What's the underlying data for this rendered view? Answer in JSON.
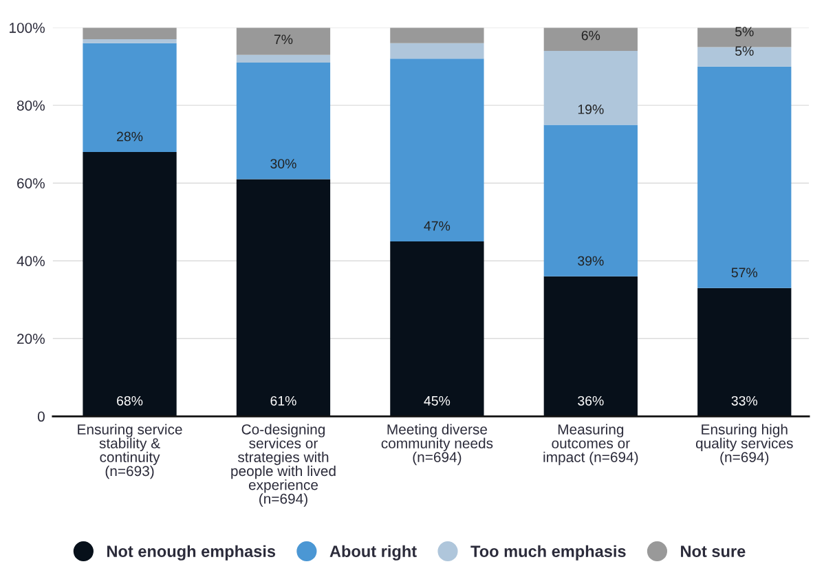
{
  "chart_data": {
    "type": "bar",
    "stacked": true,
    "categories": [
      "Ensuring service\nstability &\ncontinuity\n(n=693)",
      "Co-designing\nservices or\nstrategies with\npeople with lived\nexperience\n(n=694)",
      "Meeting diverse\ncommunity needs\n(n=694)",
      "Measuring\noutcomes or\nimpact (n=694)",
      "Ensuring high\nquality services\n(n=694)"
    ],
    "series": [
      {
        "name": "Not enough emphasis",
        "color": "#07101a",
        "values": [
          68,
          61,
          45,
          36,
          33
        ],
        "value_labels": [
          "68%",
          "61%",
          "45%",
          "36%",
          "33%"
        ]
      },
      {
        "name": "About right",
        "color": "#4b97d4",
        "values": [
          28,
          30,
          47,
          39,
          57
        ],
        "value_labels": [
          "28%",
          "30%",
          "47%",
          "39%",
          "57%"
        ]
      },
      {
        "name": "Too much emphasis",
        "color": "#afc6db",
        "values": [
          1,
          2,
          4,
          19,
          5
        ],
        "value_labels": [
          null,
          null,
          null,
          "19%",
          "5%"
        ]
      },
      {
        "name": "Not sure",
        "color": "#999999",
        "values": [
          3,
          7,
          4,
          6,
          5
        ],
        "value_labels": [
          null,
          "7%",
          null,
          "6%",
          "5%"
        ]
      }
    ],
    "ylim": [
      0,
      100
    ],
    "yticks": [
      {
        "value": 0,
        "label": "0"
      },
      {
        "value": 20,
        "label": "20%"
      },
      {
        "value": 40,
        "label": "40%"
      },
      {
        "value": 60,
        "label": "60%"
      },
      {
        "value": 80,
        "label": "80%"
      },
      {
        "value": 100,
        "label": "100%"
      }
    ],
    "grid": "y",
    "legend": "bottom"
  }
}
